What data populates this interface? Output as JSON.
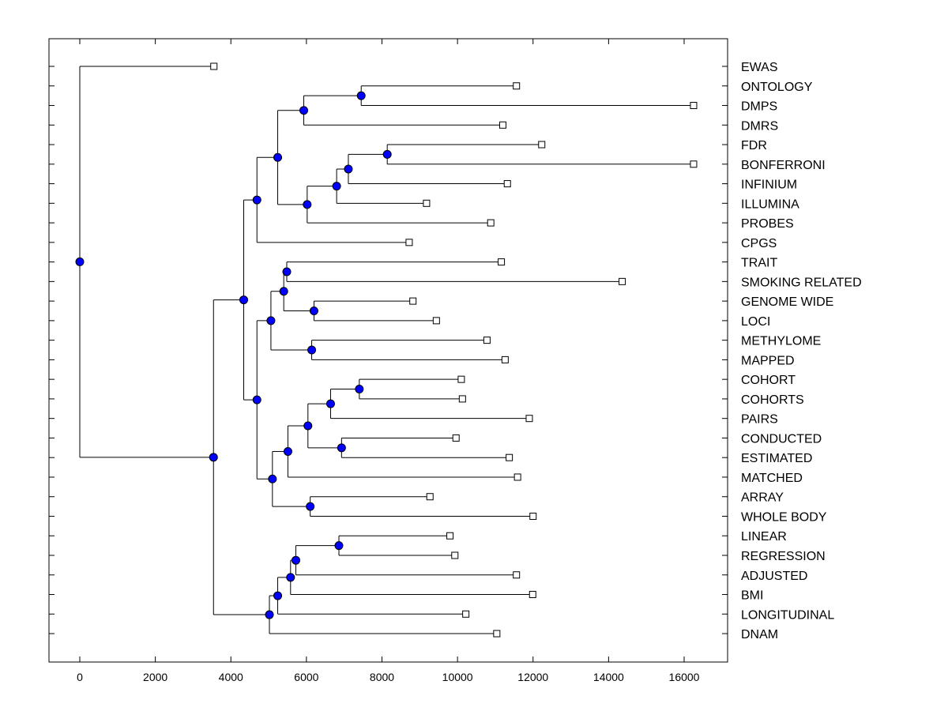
{
  "chart_data": {
    "type": "dendrogram",
    "xlim": [
      -800,
      17100
    ],
    "x_ticks": [
      0,
      2000,
      4000,
      6000,
      8000,
      10000,
      12000,
      14000,
      16000
    ],
    "x_tick_labels": [
      "0",
      "2000",
      "4000",
      "6000",
      "8000",
      "10000",
      "12000",
      "14000",
      "16000"
    ],
    "leaves": [
      {
        "id": 0,
        "label": "EWAS",
        "x": 3550
      },
      {
        "id": 1,
        "label": "ONTOLOGY",
        "x": 11560
      },
      {
        "id": 2,
        "label": "DMPS",
        "x": 16250
      },
      {
        "id": 3,
        "label": "DMRS",
        "x": 11200
      },
      {
        "id": 4,
        "label": "FDR",
        "x": 12230
      },
      {
        "id": 5,
        "label": "BONFERRONI",
        "x": 16250
      },
      {
        "id": 6,
        "label": "INFINIUM",
        "x": 11320
      },
      {
        "id": 7,
        "label": "ILLUMINA",
        "x": 9180
      },
      {
        "id": 8,
        "label": "PROBES",
        "x": 10880
      },
      {
        "id": 9,
        "label": "CPGS",
        "x": 8720
      },
      {
        "id": 10,
        "label": "TRAIT",
        "x": 11160
      },
      {
        "id": 11,
        "label": "SMOKING RELATED",
        "x": 14360
      },
      {
        "id": 12,
        "label": "GENOME WIDE",
        "x": 8820
      },
      {
        "id": 13,
        "label": "LOCI",
        "x": 9440
      },
      {
        "id": 14,
        "label": "METHYLOME",
        "x": 10780
      },
      {
        "id": 15,
        "label": "MAPPED",
        "x": 11260
      },
      {
        "id": 16,
        "label": "COHORT",
        "x": 10100
      },
      {
        "id": 17,
        "label": "COHORTS",
        "x": 10130
      },
      {
        "id": 18,
        "label": "PAIRS",
        "x": 11900
      },
      {
        "id": 19,
        "label": "CONDUCTED",
        "x": 9960
      },
      {
        "id": 20,
        "label": "ESTIMATED",
        "x": 11370
      },
      {
        "id": 21,
        "label": "MATCHED",
        "x": 11590
      },
      {
        "id": 22,
        "label": "ARRAY",
        "x": 9270
      },
      {
        "id": 23,
        "label": "WHOLE BODY",
        "x": 12000
      },
      {
        "id": 24,
        "label": "LINEAR",
        "x": 9800
      },
      {
        "id": 25,
        "label": "REGRESSION",
        "x": 9930
      },
      {
        "id": 26,
        "label": "ADJUSTED",
        "x": 11560
      },
      {
        "id": 27,
        "label": "BMI",
        "x": 11990
      },
      {
        "id": 28,
        "label": "LONGITUDINAL",
        "x": 10220
      },
      {
        "id": 29,
        "label": "DNAM",
        "x": 11040
      }
    ],
    "merges": [
      {
        "id": "m1",
        "x": 7450,
        "children": [
          1,
          2
        ]
      },
      {
        "id": "m2",
        "x": 5930,
        "children": [
          "m1",
          3
        ]
      },
      {
        "id": "m3",
        "x": 8140,
        "children": [
          4,
          5
        ]
      },
      {
        "id": "m4",
        "x": 7110,
        "children": [
          "m3",
          6
        ]
      },
      {
        "id": "m5",
        "x": 6800,
        "children": [
          "m4",
          7
        ]
      },
      {
        "id": "m6",
        "x": 6020,
        "children": [
          "m5",
          8
        ]
      },
      {
        "id": "m7",
        "x": 5240,
        "children": [
          "m2",
          "m6"
        ]
      },
      {
        "id": "m8",
        "x": 4690,
        "children": [
          "m7",
          9
        ]
      },
      {
        "id": "m9",
        "x": 5480,
        "children": [
          10,
          11
        ]
      },
      {
        "id": "m10",
        "x": 6200,
        "children": [
          12,
          13
        ]
      },
      {
        "id": "m11",
        "x": 5400,
        "children": [
          "m9",
          "m10"
        ]
      },
      {
        "id": "m12",
        "x": 6140,
        "children": [
          14,
          15
        ]
      },
      {
        "id": "m13",
        "x": 5060,
        "children": [
          "m11",
          "m12"
        ]
      },
      {
        "id": "m14",
        "x": 7400,
        "children": [
          16,
          17
        ]
      },
      {
        "id": "m15",
        "x": 6640,
        "children": [
          "m14",
          18
        ]
      },
      {
        "id": "m16",
        "x": 6930,
        "children": [
          19,
          20
        ]
      },
      {
        "id": "m17",
        "x": 6040,
        "children": [
          "m15",
          "m16"
        ]
      },
      {
        "id": "m18",
        "x": 5510,
        "children": [
          "m17",
          21
        ]
      },
      {
        "id": "m19",
        "x": 6100,
        "children": [
          22,
          23
        ]
      },
      {
        "id": "m20",
        "x": 5100,
        "children": [
          "m18",
          "m19"
        ]
      },
      {
        "id": "m21",
        "x": 4690,
        "children": [
          "m13",
          "m20"
        ]
      },
      {
        "id": "m22",
        "x": 4340,
        "children": [
          "m8",
          "m21"
        ]
      },
      {
        "id": "m23",
        "x": 6860,
        "children": [
          24,
          25
        ]
      },
      {
        "id": "m24",
        "x": 5720,
        "children": [
          "m23",
          26
        ]
      },
      {
        "id": "m25",
        "x": 5580,
        "children": [
          "m24",
          27
        ]
      },
      {
        "id": "m26",
        "x": 5240,
        "children": [
          "m25",
          28
        ]
      },
      {
        "id": "m27",
        "x": 5020,
        "children": [
          "m26",
          29
        ]
      },
      {
        "id": "m28",
        "x": 3540,
        "children": [
          "m22",
          "m27"
        ]
      },
      {
        "id": "m29",
        "x": 0,
        "children": [
          0,
          "m28"
        ]
      }
    ],
    "colors": {
      "line": "#000000",
      "merge_node": "#0000ff",
      "leaf_marker_fill": "#ffffff"
    }
  }
}
